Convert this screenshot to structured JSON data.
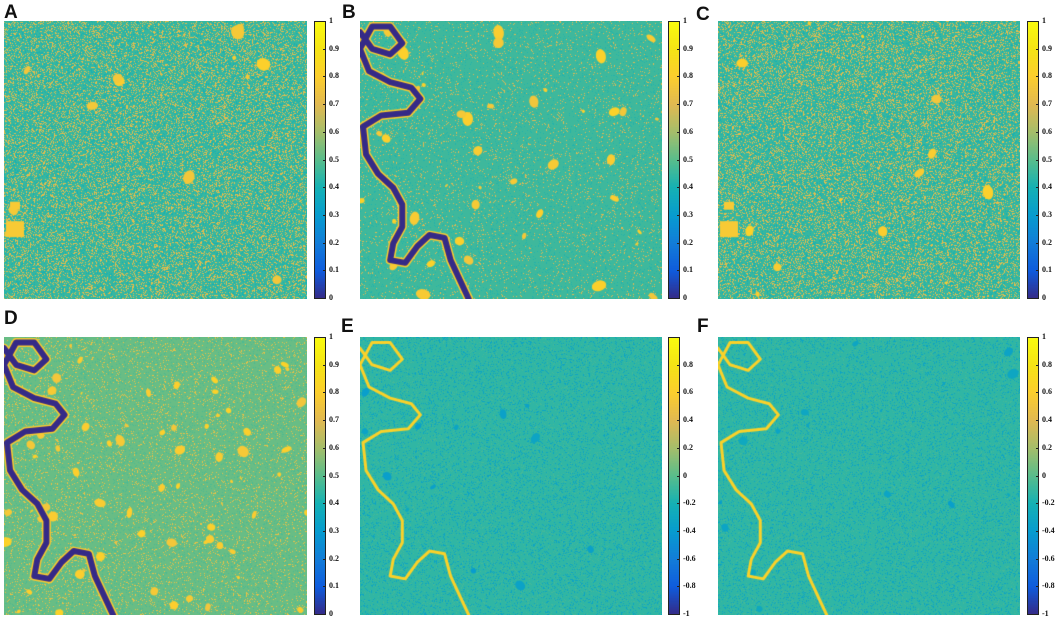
{
  "panels": [
    {
      "letter": "A",
      "variant": "noise",
      "water": false,
      "ticks": [
        "1",
        "0.9",
        "0.8",
        "0.7",
        "0.6",
        "0.5",
        "0.4",
        "0.3",
        "0.2",
        "0.1",
        "0"
      ],
      "range": [
        0,
        1
      ]
    },
    {
      "letter": "B",
      "variant": "river",
      "water": true,
      "ticks": [
        "1",
        "0.9",
        "0.8",
        "0.7",
        "0.6",
        "0.5",
        "0.4",
        "0.3",
        "0.2",
        "0.1",
        "0"
      ],
      "range": [
        0,
        1
      ]
    },
    {
      "letter": "C",
      "variant": "noise",
      "water": false,
      "ticks": [
        "1",
        "0.9",
        "0.8",
        "0.7",
        "0.6",
        "0.5",
        "0.4",
        "0.3",
        "0.2",
        "0.1",
        "0"
      ],
      "range": [
        0,
        1
      ]
    },
    {
      "letter": "D",
      "variant": "river-dense",
      "water": true,
      "ticks": [
        "1",
        "0.9",
        "0.8",
        "0.7",
        "0.6",
        "0.5",
        "0.4",
        "0.3",
        "0.2",
        "0.1",
        "0"
      ],
      "range": [
        0,
        1
      ]
    },
    {
      "letter": "E",
      "variant": "diff",
      "water": true,
      "ticks": [
        "0.8",
        "0.6",
        "0.4",
        "0.2",
        "0",
        "-0.2",
        "-0.4",
        "-0.6",
        "-0.8",
        "-1"
      ],
      "range": [
        -1,
        1
      ]
    },
    {
      "letter": "F",
      "variant": "diff",
      "water": true,
      "ticks": [
        "1",
        "0.8",
        "0.6",
        "0.4",
        "0.2",
        "0",
        "-0.2",
        "-0.4",
        "-0.6",
        "-0.8",
        "-1"
      ],
      "range": [
        -1,
        1
      ]
    }
  ],
  "colormap": "parula",
  "colors": {
    "background": "#ffffff",
    "text": "#111111"
  }
}
